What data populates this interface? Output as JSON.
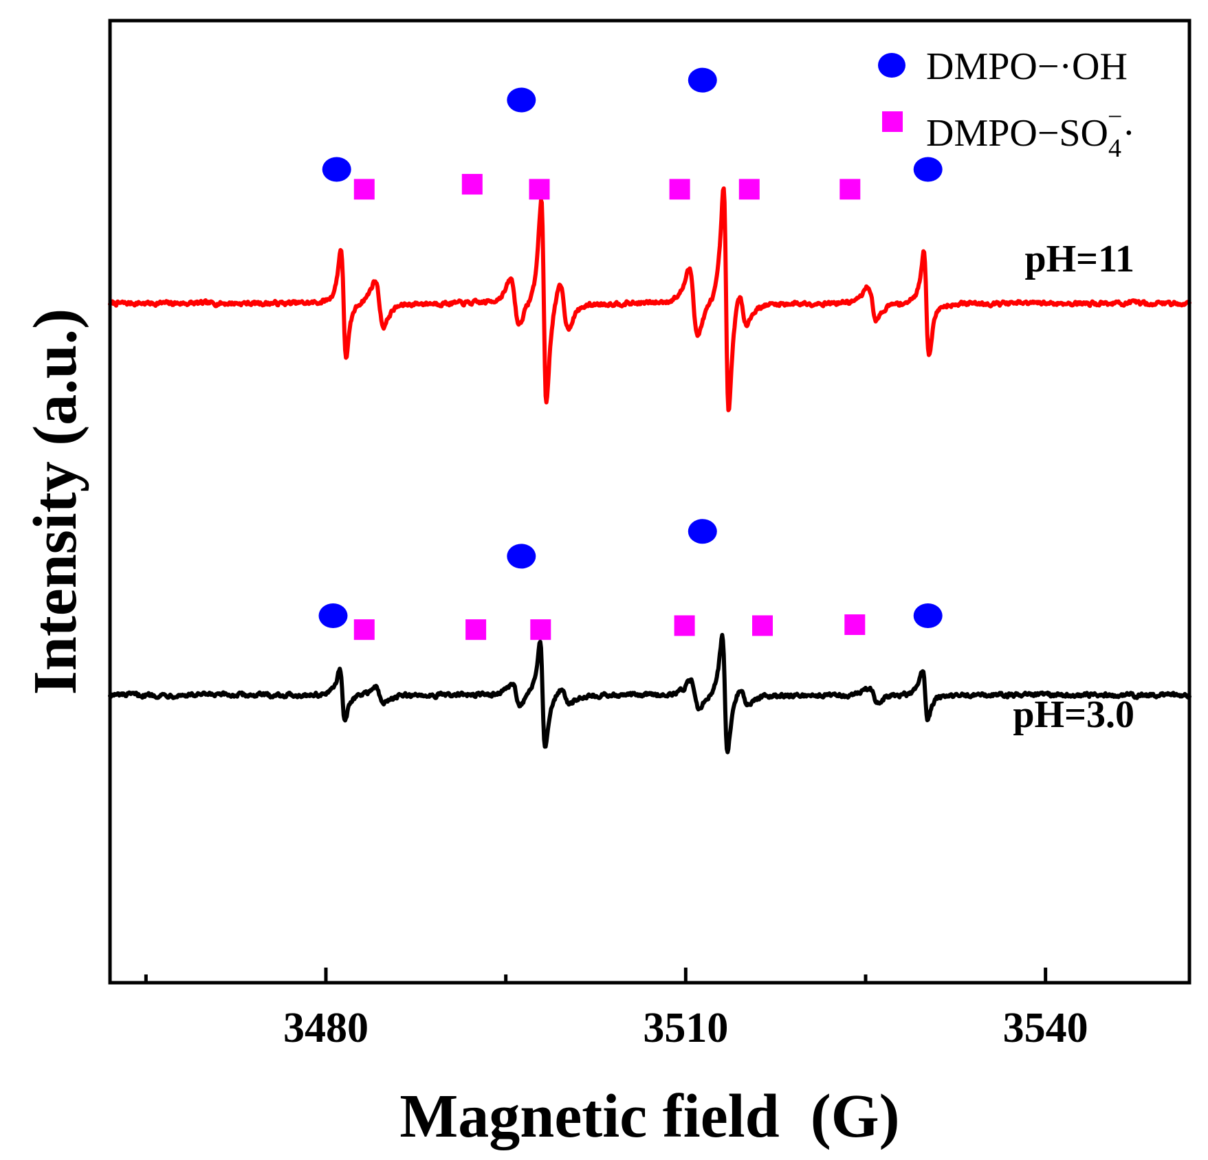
{
  "chart_data": {
    "type": "line",
    "title": "",
    "xlabel": "Magnetic field  (G)",
    "ylabel": "Intensity (a.u.)",
    "xlim": [
      3462,
      3552
    ],
    "ylim": [
      -2.9,
      6.8
    ],
    "x_major_ticks": [
      3480,
      3510,
      3540
    ],
    "x_minor_ticks": [
      3465,
      3495,
      3525
    ],
    "y_ticks_visible": false,
    "legend": {
      "position": "top-right",
      "entries": [
        {
          "label": "DMPO−·OH",
          "marker": "circle",
          "color": "#0000FF",
          "display": {
            "main": "DMPO−·OH"
          }
        },
        {
          "label": "DMPO−SO4−·",
          "marker": "square",
          "color": "#FF00FF",
          "display": {
            "main": "DMPO−SO",
            "sub": "4",
            "sup": "−",
            "tail": "·"
          }
        }
      ]
    },
    "peak_shape": {
      "oh_width_g": 0.38,
      "so4_width_g": 0.62,
      "oh_peak_offset_g": -0.25,
      "so4_peak_offset_g": -0.1
    },
    "series": [
      {
        "name": "pH=11",
        "color": "#FF0000",
        "label": "pH=11",
        "baseline": 3.95,
        "noise": 0.035,
        "oh_lines": [
          {
            "x": 3481.5,
            "amp": 1.3
          },
          {
            "x": 3498.2,
            "amp": 2.45
          },
          {
            "x": 3513.4,
            "amp": 2.7
          },
          {
            "x": 3530.1,
            "amp": 1.25
          }
        ],
        "so4_lines": [
          {
            "x": 3484.2,
            "amp": 0.55
          },
          {
            "x": 3495.5,
            "amp": 0.55
          },
          {
            "x": 3499.6,
            "amp": 0.55
          },
          {
            "x": 3510.4,
            "amp": 0.8
          },
          {
            "x": 3514.5,
            "amp": 0.4
          },
          {
            "x": 3525.3,
            "amp": 0.4
          }
        ],
        "oh_marker_x": [
          3480.9,
          3496.3,
          3511.4,
          3530.2
        ],
        "oh_marker_y": [
          5.3,
          6.0,
          6.2,
          5.3
        ],
        "so4_marker_x": [
          3483.2,
          3492.2,
          3497.8,
          3509.5,
          3515.3,
          3523.7
        ],
        "so4_marker_y": [
          5.1,
          5.15,
          5.1,
          5.1,
          5.1,
          5.1
        ]
      },
      {
        "name": "pH=3.0",
        "color": "#000000",
        "label": "pH=3.0",
        "baseline": 0.0,
        "noise": 0.035,
        "oh_lines": [
          {
            "x": 3481.4,
            "amp": 0.62
          },
          {
            "x": 3498.1,
            "amp": 1.27
          },
          {
            "x": 3513.3,
            "amp": 1.4
          },
          {
            "x": 3530.0,
            "amp": 0.6
          }
        ],
        "so4_lines": [
          {
            "x": 3484.2,
            "amp": 0.2
          },
          {
            "x": 3495.6,
            "amp": 0.25
          },
          {
            "x": 3499.7,
            "amp": 0.2
          },
          {
            "x": 3510.5,
            "amp": 0.35
          },
          {
            "x": 3514.6,
            "amp": 0.2
          },
          {
            "x": 3525.4,
            "amp": 0.18
          }
        ],
        "oh_marker_x": [
          3480.6,
          3496.3,
          3511.4,
          3530.2
        ],
        "oh_marker_y": [
          0.8,
          1.4,
          1.65,
          0.8
        ],
        "so4_marker_x": [
          3483.2,
          3492.5,
          3497.9,
          3509.9,
          3516.4,
          3524.1
        ],
        "so4_marker_y": [
          0.66,
          0.66,
          0.66,
          0.7,
          0.7,
          0.71
        ]
      }
    ]
  }
}
